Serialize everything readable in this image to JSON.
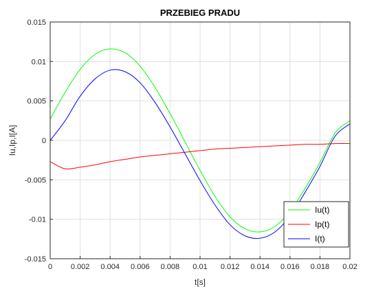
{
  "chart_data": {
    "type": "line",
    "title": "PRZEBIEG PRADU",
    "xlabel": "t[s]",
    "ylabel": "Iu,Ip,I[A]",
    "xlim": [
      0,
      0.02
    ],
    "ylim": [
      -0.015,
      0.015
    ],
    "xticks": [
      "0",
      "0.002",
      "0.004",
      "0.006",
      "0.008",
      "0.01",
      "0.012",
      "0.014",
      "0.016",
      "0.018",
      "0.02"
    ],
    "yticks": [
      "0.015",
      "0.01",
      "0.005",
      "0",
      "-0.005",
      "-0.01",
      "-0.015"
    ],
    "grid": true,
    "legend_position": "bottom-right",
    "x": [
      0,
      0.001,
      0.002,
      0.003,
      0.004,
      0.005,
      0.006,
      0.007,
      0.008,
      0.009,
      0.01,
      0.011,
      0.012,
      0.013,
      0.014,
      0.015,
      0.016,
      0.017,
      0.018,
      0.019,
      0.02
    ],
    "series": [
      {
        "name": "Iu(t)",
        "color": "#00ff00",
        "values": [
          0.0027,
          0.0061,
          0.009,
          0.0109,
          0.0116,
          0.0111,
          0.0094,
          0.0067,
          0.0034,
          -0.0002,
          -0.0038,
          -0.0071,
          -0.0097,
          -0.0112,
          -0.0116,
          -0.0109,
          -0.009,
          -0.0061,
          -0.0028,
          0.0009,
          0.0025
        ]
      },
      {
        "name": "Ip(t)",
        "color": "#ff0000",
        "values": [
          -0.0027,
          -0.0036,
          -0.0034,
          -0.0031,
          -0.0027,
          -0.0024,
          -0.0021,
          -0.0019,
          -0.0017,
          -0.0015,
          -0.0013,
          -0.0011,
          -0.001,
          -0.0009,
          -0.0008,
          -0.0007,
          -0.0006,
          -0.0005,
          -0.0005,
          -0.0004,
          -0.0004
        ]
      },
      {
        "name": "I(t)",
        "color": "#0000ff",
        "values": [
          0.0,
          0.0025,
          0.0056,
          0.0078,
          0.0089,
          0.0087,
          0.0073,
          0.0048,
          0.0017,
          -0.0017,
          -0.0051,
          -0.0082,
          -0.0107,
          -0.0121,
          -0.0124,
          -0.0116,
          -0.0096,
          -0.0066,
          -0.0033,
          0.0005,
          0.0021
        ]
      }
    ]
  }
}
